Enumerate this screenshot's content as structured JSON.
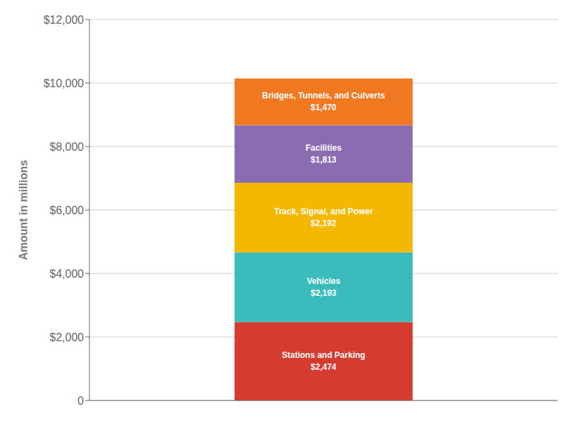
{
  "chart_data": {
    "type": "bar",
    "stacked": true,
    "categories": [
      null
    ],
    "series": [
      {
        "name": "Stations and Parking",
        "color": "#D63B2F",
        "values": [
          2474
        ],
        "value_labels": [
          "$2,474"
        ]
      },
      {
        "name": "Vehicles",
        "color": "#3BBCBC",
        "values": [
          2193
        ],
        "value_labels": [
          "$2,193"
        ]
      },
      {
        "name": "Track, Signal, and Power",
        "color": "#F5B800",
        "values": [
          2192
        ],
        "value_labels": [
          "$2,192"
        ]
      },
      {
        "name": "Facilities",
        "color": "#8B6BB1",
        "values": [
          1813
        ],
        "value_labels": [
          "$1,813"
        ]
      },
      {
        "name": "Bridges, Tunnels, and Culverts",
        "color": "#F07820",
        "values": [
          1470
        ],
        "value_labels": [
          "$1,470"
        ]
      }
    ],
    "ylabel": "Amount in millions",
    "ylim": [
      0,
      12000
    ],
    "yticks": [
      0,
      {
        "value": 2000,
        "label": "$2,000"
      },
      {
        "value": 4000,
        "label": "$4,000"
      },
      {
        "value": 6000,
        "label": "$6,000"
      },
      {
        "value": 8000,
        "label": "$8,000"
      },
      {
        "value": 10000,
        "label": "$10,000"
      },
      {
        "value": 12000,
        "label": "$12,000"
      }
    ],
    "grid": true,
    "data_labels": true,
    "tick_labels": "y"
  }
}
